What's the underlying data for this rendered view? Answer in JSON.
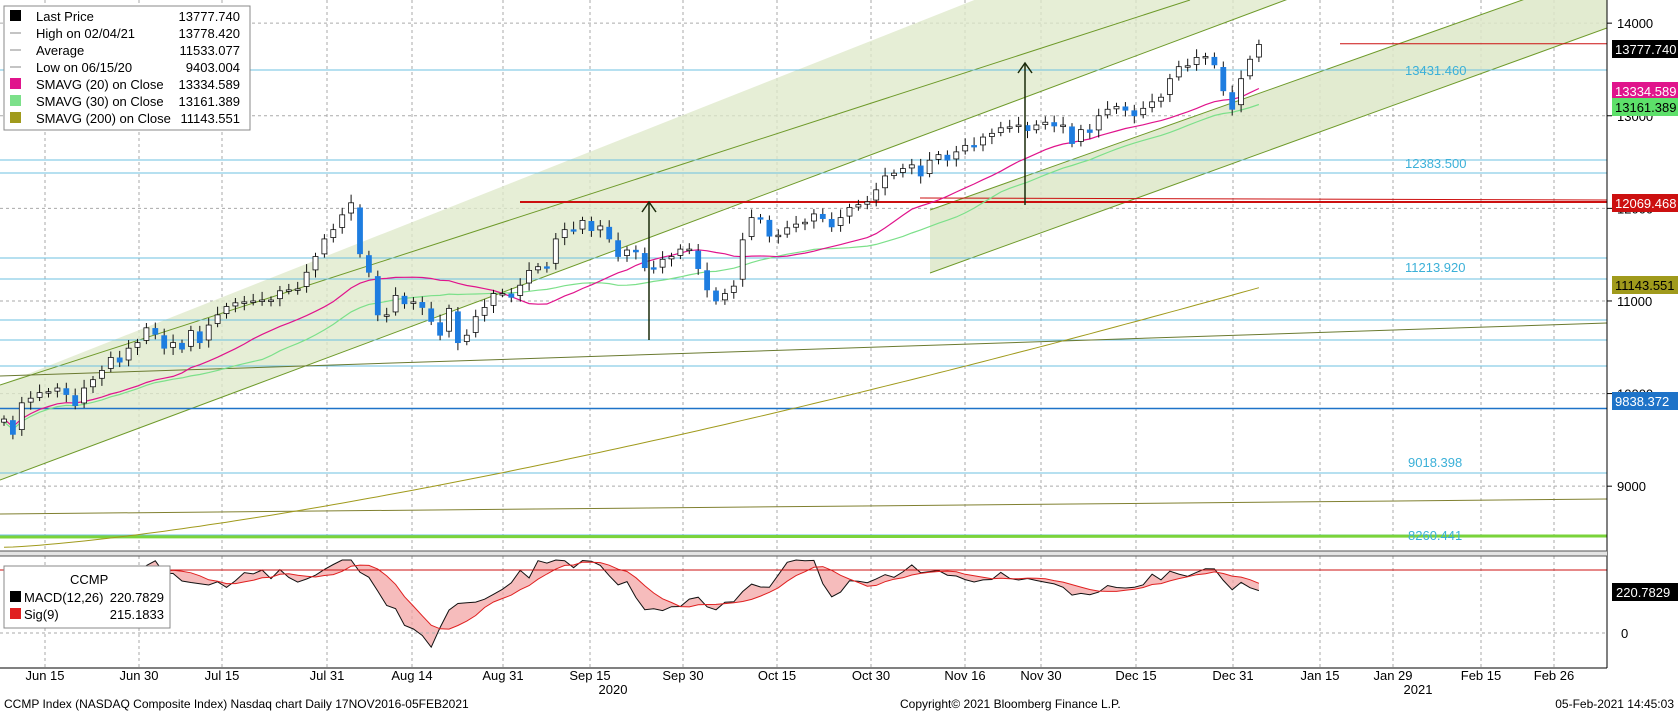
{
  "chart_data": [
    {
      "type": "line",
      "title": "CCMP Index (NASDAQ Composite Index) Nasdaq chart",
      "subtitle": "Daily 17NOV2016-05FEB2021",
      "ylim": [
        8300,
        14250
      ],
      "y_ticks": [
        9000,
        10000,
        11000,
        12000,
        13000,
        14000
      ],
      "x_ticks": [
        "Jun 15",
        "Jun 30",
        "Jul 15",
        "Jul 31",
        "Aug 14",
        "Aug 31",
        "Sep 15",
        "Sep 30",
        "Oct 15",
        "Oct 30",
        "Nov 16",
        "Nov 30",
        "Dec 15",
        "Dec 31",
        "Jan 15",
        "Jan 29",
        "Feb 15",
        "Feb 26"
      ],
      "x_year_labels": [
        "2020",
        "2021"
      ],
      "grid": true,
      "legend_position": "top-left",
      "legend": [
        {
          "name": "Last Price",
          "value": "13777.740",
          "color": "#000000"
        },
        {
          "name": "High on 02/04/21",
          "value": "13778.420",
          "color": "#888888"
        },
        {
          "name": "Average",
          "value": "11533.077",
          "color": "#888888"
        },
        {
          "name": "Low on 06/15/20",
          "value": "9403.004",
          "color": "#888888"
        },
        {
          "name": "SMAVG (20)  on Close",
          "value": "13334.589",
          "color": "#e0148c"
        },
        {
          "name": "SMAVG (30)  on Close",
          "value": "13161.389",
          "color": "#7ce08a"
        },
        {
          "name": "SMAVG (200)  on Close",
          "value": "11143.551",
          "color": "#a09a1c"
        }
      ],
      "level_labels": [
        "13431.460",
        "12383.500",
        "11213.920",
        "9018.398",
        "8260.441"
      ],
      "right_tags": [
        {
          "value": "13777.740",
          "bg": "#000000",
          "fg": "#ffffff"
        },
        {
          "value": "13334.589",
          "bg": "#e0148c",
          "fg": "#ffffff"
        },
        {
          "value": "13161.389",
          "bg": "#5de06a",
          "fg": "#000000"
        },
        {
          "value": "12069.468",
          "bg": "#cc1010",
          "fg": "#ffffff"
        },
        {
          "value": "11143.551",
          "bg": "#a09a1c",
          "fg": "#000000"
        },
        {
          "value": "9838.372",
          "bg": "#1e73c8",
          "fg": "#ffffff"
        }
      ],
      "series": [
        {
          "name": "CCMP",
          "close": [
            9725,
            9560,
            9900,
            9950,
            10010,
            10020,
            10060,
            9990,
            9870,
            10060,
            10150,
            10250,
            10390,
            10340,
            10490,
            10550,
            10710,
            10640,
            10490,
            10550,
            10480,
            10680,
            10550,
            10740,
            10850,
            10940,
            10980,
            10990,
            11000,
            11010,
            11010,
            11110,
            11120,
            11130,
            11310,
            11480,
            11670,
            11770,
            11930,
            12060,
            11510,
            11310,
            10850,
            10850,
            11060,
            10970,
            10990,
            10930,
            10780,
            10630,
            10920,
            10550,
            10630,
            10830,
            10930,
            11080,
            11080,
            11040,
            11170,
            11330,
            11370,
            11360,
            11670,
            11770,
            11760,
            11870,
            11760,
            11810,
            11670,
            11480,
            11550,
            11530,
            11360,
            11350,
            11450,
            11480,
            11560,
            11560,
            11350,
            11120,
            11000,
            11080,
            11160,
            11660,
            11900,
            11890,
            11700,
            11710,
            11790,
            11830,
            11850,
            11940,
            11890,
            11800,
            11900,
            12010,
            12040,
            12070,
            12200,
            12350,
            12380,
            12430,
            12470,
            12350,
            12520,
            12580,
            12520,
            12610,
            12680,
            12670,
            12770,
            12810,
            12870,
            12880,
            12900,
            12840,
            12900,
            12930,
            12890,
            12900,
            12700,
            12850,
            12820,
            13000,
            13070,
            13100,
            13060,
            13000,
            13080,
            13150,
            13200,
            13400,
            13530,
            13540,
            13630,
            13640,
            13550,
            13270,
            13070,
            13400,
            13610,
            13770
          ]
        },
        {
          "name": "SMAVG (20)",
          "values_start_end": [
            9650,
            13334.589
          ]
        },
        {
          "name": "SMAVG (30)",
          "values_start_end": [
            9450,
            13161.389
          ]
        },
        {
          "name": "SMAVG (200)",
          "values_start_end": [
            8340,
            11143.551
          ]
        }
      ]
    },
    {
      "type": "area",
      "title": "CCMP",
      "legend": [
        {
          "name": "MACD(12,26)",
          "value": "220.7829",
          "color": "#000000"
        },
        {
          "name": "Sig(9)",
          "value": "215.1833",
          "color": "#e02020"
        }
      ],
      "y_ticks": [
        0
      ],
      "right_tag": {
        "value": "220.7829",
        "bg": "#000000",
        "fg": "#ffffff"
      }
    }
  ],
  "footer": {
    "left": "CCMP Index (NASDAQ Composite Index) Nasdaq chart  Daily 17NOV2016-05FEB2021",
    "center": "Copyright© 2021 Bloomberg Finance L.P.",
    "right": "05-Feb-2021  14:45:03"
  }
}
